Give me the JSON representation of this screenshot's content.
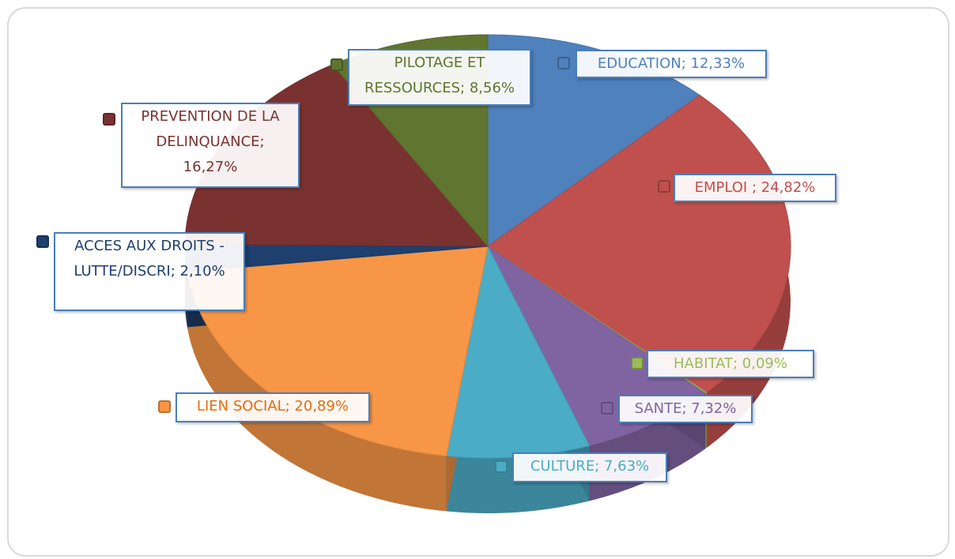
{
  "chart_data": {
    "type": "pie",
    "values": [
      12.33,
      24.82,
      0.09,
      7.32,
      7.63,
      20.89,
      2.1,
      16.27,
      8.56
    ],
    "value_labels": [
      "EDUCATION; 12,33%",
      "EMPLOI ; 24,82%",
      "HABITAT; 0,09%",
      "SANTE; 7,32%",
      "CULTURE; 7,63%",
      "LIEN SOCIAL; 20,89%",
      "ACCES AUX DROITS - LUTTE/DISCRI; 2,10%",
      "PREVENTION DE LA DELINQUANCE; 16,27%",
      "PILOTAGE ET RESSOURCES; 8,56%"
    ],
    "colors": [
      "#4f81bd",
      "#c0504d",
      "#9bbb59",
      "#8064a2",
      "#4bacc6",
      "#f79646",
      "#1f3f6e",
      "#7a3230",
      "#5f7530"
    ],
    "text_colors": [
      "#4f81bd",
      "#c0504d",
      "#9bbb59",
      "#8064a2",
      "#4bacc6",
      "#e46c0a",
      "#1f3f6e",
      "#7a3230",
      "#5f7530"
    ]
  }
}
